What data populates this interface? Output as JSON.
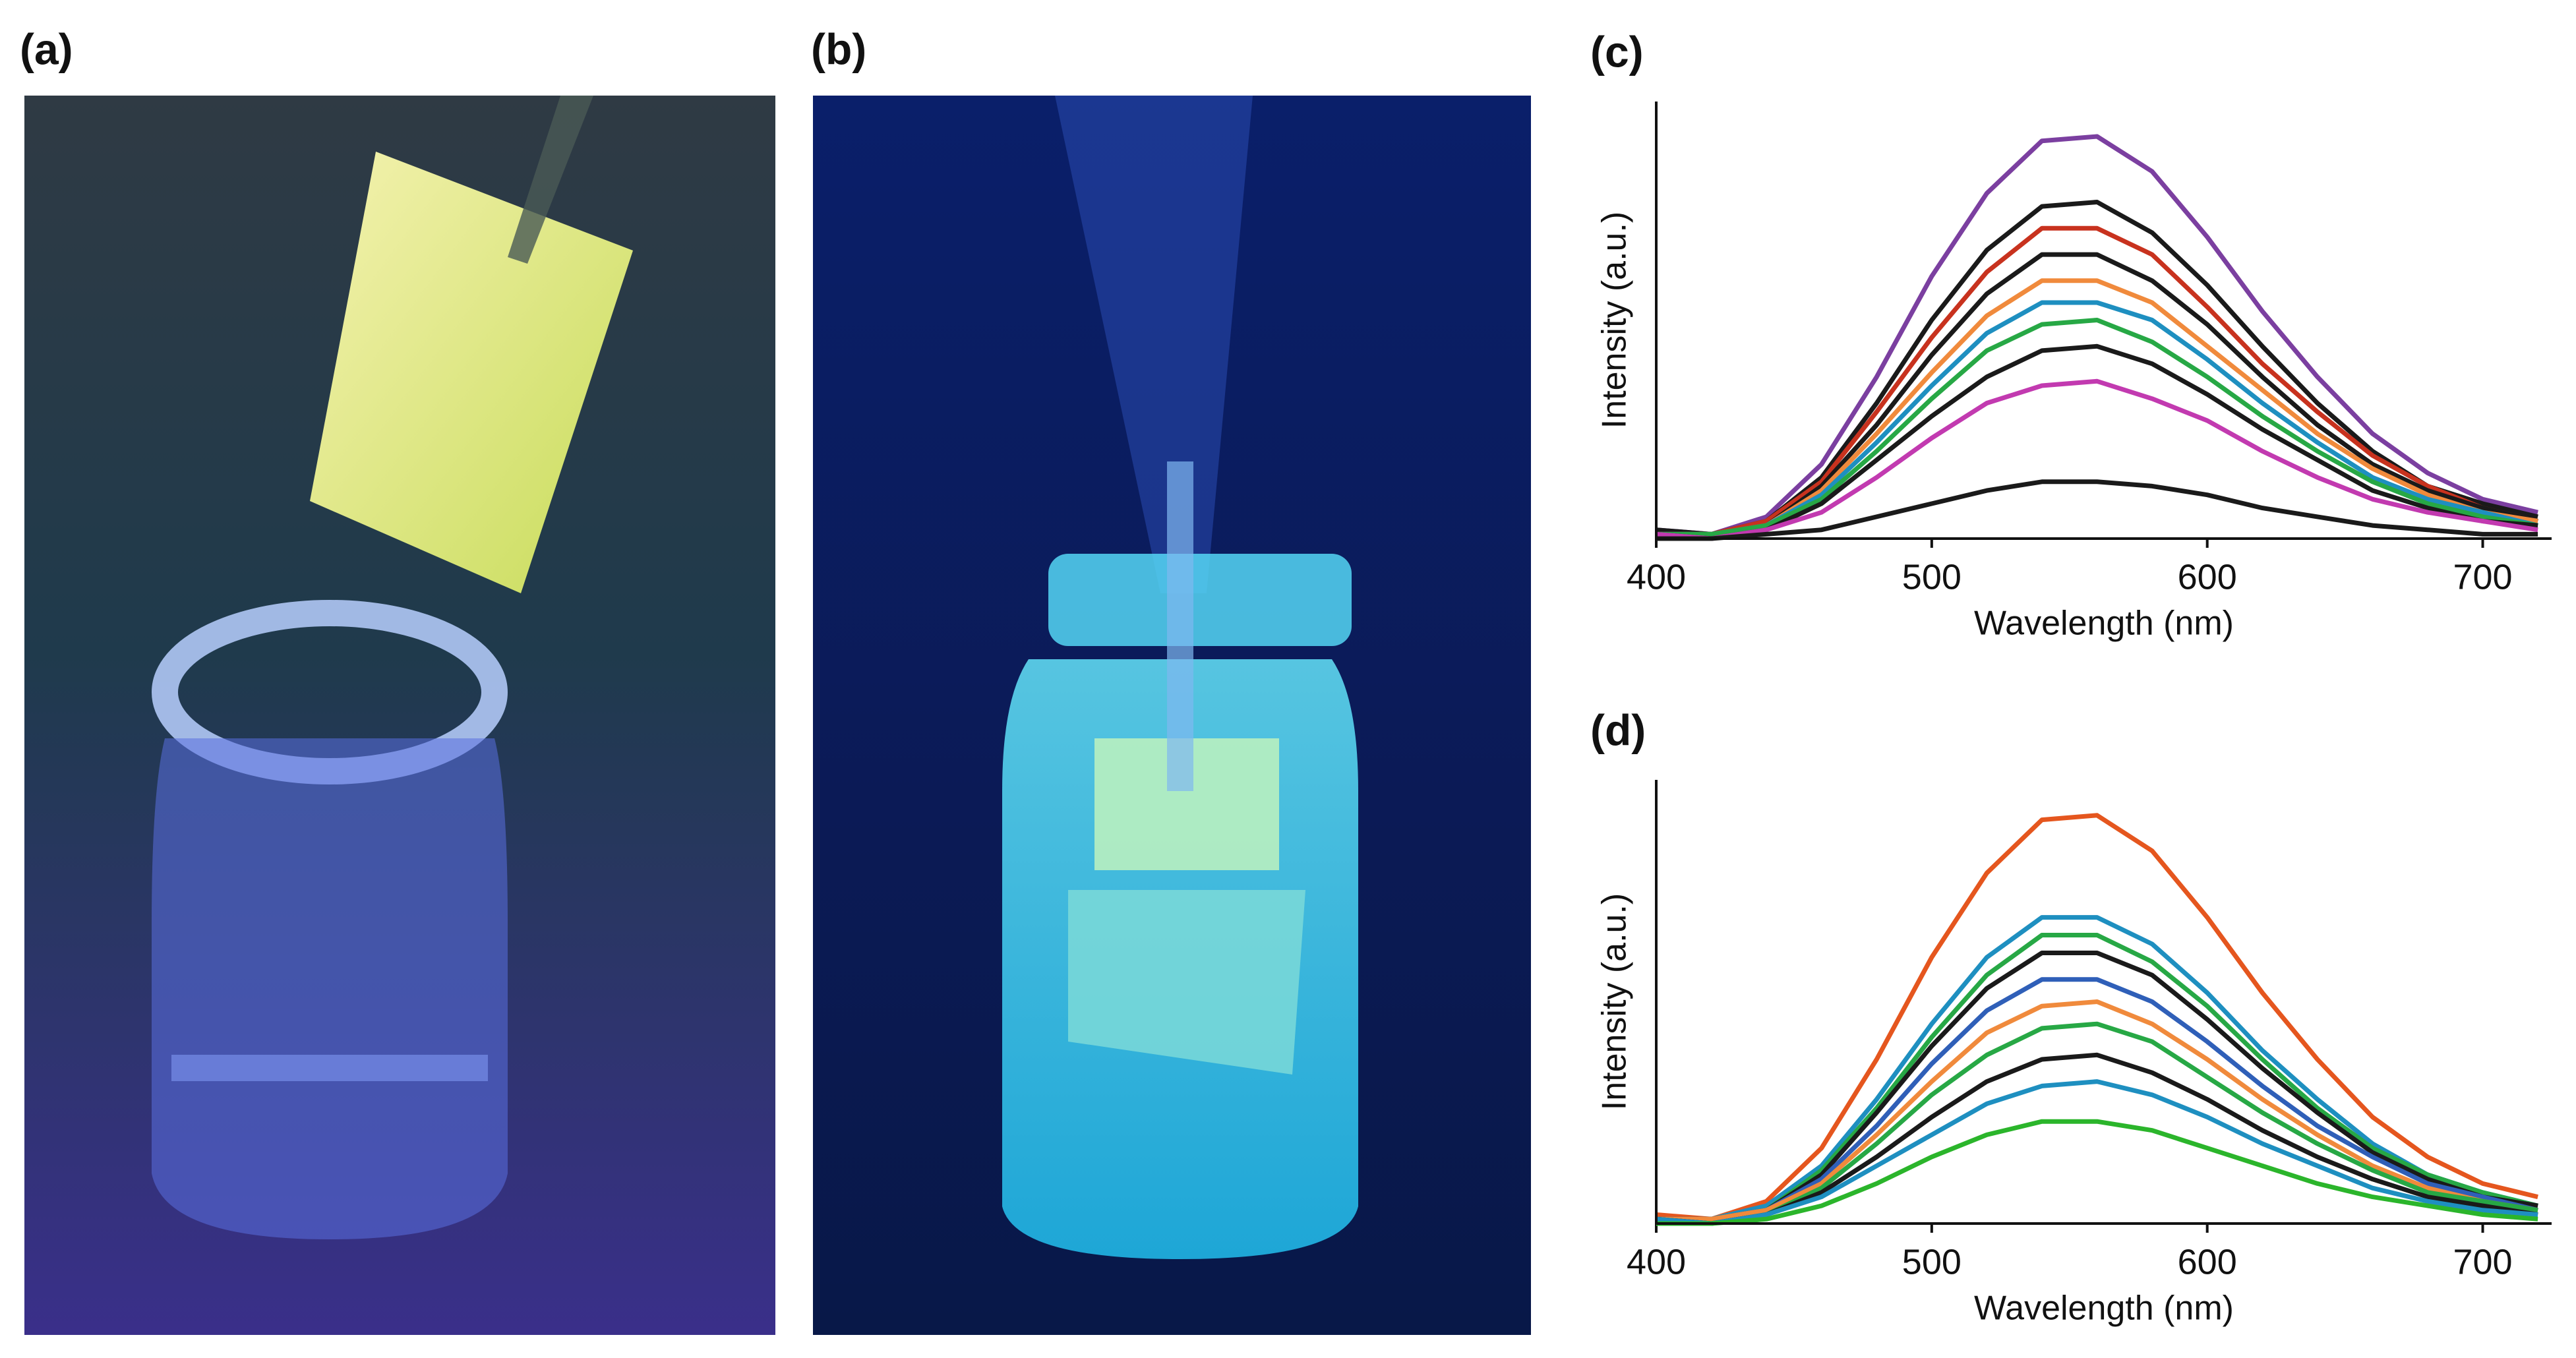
{
  "panels": [
    {
      "label": "(a)"
    },
    {
      "label": "(b)"
    }
  ],
  "chart_data": [
    {
      "type": "line",
      "panel_label": "(c)",
      "x_label": "Wavelength (nm)",
      "y_label": "Intensity (a.u.)",
      "x": [
        400,
        420,
        440,
        460,
        480,
        500,
        520,
        540,
        560,
        580,
        600,
        620,
        640,
        660,
        680,
        700,
        720
      ],
      "xlim": [
        400,
        725
      ],
      "xticks": [
        400,
        500,
        600,
        700
      ],
      "ylim": [
        0,
        100
      ],
      "series": [
        {
          "color": "#7b3fa0",
          "values": [
            2,
            1,
            5,
            17,
            37,
            60,
            79,
            91,
            92,
            84,
            69,
            52,
            37,
            24,
            15,
            9,
            6
          ]
        },
        {
          "color": "#1a1a1a",
          "values": [
            2,
            1,
            4,
            14,
            31,
            50,
            66,
            76,
            77,
            70,
            58,
            44,
            31,
            20,
            12,
            8,
            5
          ]
        },
        {
          "color": "#c8321e",
          "values": [
            1,
            1,
            4,
            13,
            29,
            46,
            61,
            71,
            71,
            65,
            53,
            40,
            29,
            19,
            12,
            7,
            4
          ]
        },
        {
          "color": "#1a1a1a",
          "values": [
            1,
            1,
            3,
            12,
            26,
            42,
            56,
            65,
            65,
            59,
            49,
            37,
            26,
            17,
            11,
            7,
            4
          ]
        },
        {
          "color": "#f08a3c",
          "values": [
            1,
            1,
            3,
            11,
            24,
            38,
            51,
            59,
            59,
            54,
            44,
            34,
            24,
            16,
            10,
            6,
            4
          ]
        },
        {
          "color": "#1e8fc0",
          "values": [
            1,
            1,
            3,
            10,
            22,
            35,
            47,
            54,
            54,
            50,
            41,
            31,
            22,
            14,
            9,
            6,
            3
          ]
        },
        {
          "color": "#27a845",
          "values": [
            1,
            1,
            3,
            9,
            20,
            32,
            43,
            49,
            50,
            45,
            37,
            28,
            20,
            13,
            8,
            5,
            3
          ]
        },
        {
          "color": "#1a1a1a",
          "values": [
            1,
            0,
            2,
            8,
            18,
            28,
            37,
            43,
            44,
            40,
            33,
            25,
            18,
            11,
            7,
            4,
            3
          ]
        },
        {
          "color": "#c23ab0",
          "values": [
            1,
            0,
            2,
            6,
            14,
            23,
            31,
            35,
            36,
            32,
            27,
            20,
            14,
            9,
            6,
            4,
            2
          ]
        },
        {
          "color": "#1a1a1a",
          "values": [
            0,
            0,
            1,
            2,
            5,
            8,
            11,
            13,
            13,
            12,
            10,
            7,
            5,
            3,
            2,
            1,
            1
          ]
        }
      ]
    },
    {
      "type": "line",
      "panel_label": "(d)",
      "x_label": "Wavelength (nm)",
      "y_label": "Intensity (a.u.)",
      "x": [
        400,
        420,
        440,
        460,
        480,
        500,
        520,
        540,
        560,
        580,
        600,
        620,
        640,
        660,
        680,
        700,
        720
      ],
      "xlim": [
        400,
        725
      ],
      "xticks": [
        400,
        500,
        600,
        700
      ],
      "ylim": [
        0,
        100
      ],
      "series": [
        {
          "color": "#e5561e",
          "values": [
            2,
            1,
            5,
            17,
            37,
            60,
            79,
            91,
            92,
            84,
            69,
            52,
            37,
            24,
            15,
            9,
            6
          ]
        },
        {
          "color": "#1e8fc0",
          "values": [
            1,
            1,
            4,
            13,
            28,
            45,
            60,
            69,
            69,
            63,
            52,
            39,
            28,
            18,
            11,
            7,
            4
          ]
        },
        {
          "color": "#27a845",
          "values": [
            1,
            1,
            3,
            12,
            26,
            42,
            56,
            65,
            65,
            59,
            49,
            37,
            26,
            17,
            11,
            7,
            4
          ]
        },
        {
          "color": "#1a1a1a",
          "values": [
            1,
            1,
            3,
            11,
            25,
            40,
            53,
            61,
            61,
            56,
            46,
            35,
            25,
            16,
            10,
            6,
            4
          ]
        },
        {
          "color": "#2f5fb8",
          "values": [
            1,
            1,
            3,
            10,
            22,
            36,
            48,
            55,
            55,
            50,
            41,
            31,
            22,
            15,
            9,
            6,
            3
          ]
        },
        {
          "color": "#f08a3c",
          "values": [
            1,
            1,
            3,
            9,
            20,
            32,
            43,
            49,
            50,
            45,
            37,
            28,
            20,
            13,
            8,
            5,
            3
          ]
        },
        {
          "color": "#27a845",
          "values": [
            1,
            0,
            2,
            8,
            18,
            29,
            38,
            44,
            45,
            41,
            33,
            25,
            18,
            12,
            7,
            5,
            3
          ]
        },
        {
          "color": "#1a1a1a",
          "values": [
            1,
            0,
            2,
            7,
            15,
            24,
            32,
            37,
            38,
            34,
            28,
            21,
            15,
            10,
            6,
            4,
            2
          ]
        },
        {
          "color": "#1e8fc0",
          "values": [
            1,
            0,
            2,
            6,
            13,
            20,
            27,
            31,
            32,
            29,
            24,
            18,
            13,
            8,
            5,
            3,
            2
          ]
        },
        {
          "color": "#2bb52b",
          "values": [
            0,
            0,
            1,
            4,
            9,
            15,
            20,
            23,
            23,
            21,
            17,
            13,
            9,
            6,
            4,
            2,
            1
          ]
        }
      ]
    }
  ]
}
